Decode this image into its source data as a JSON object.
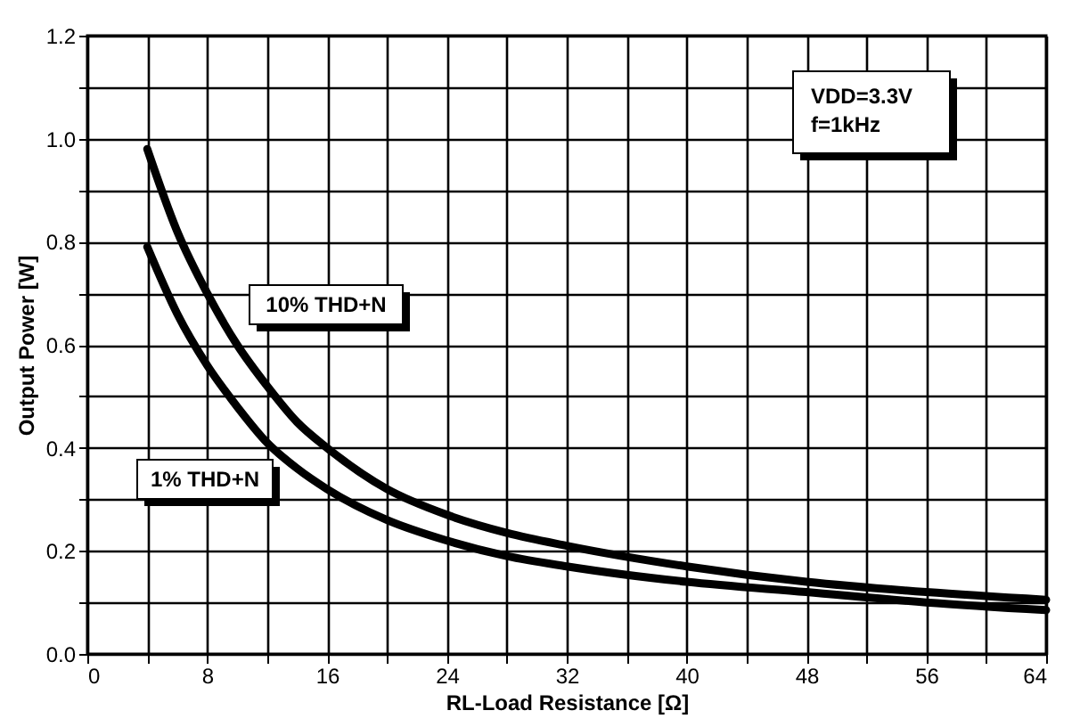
{
  "chart_data": {
    "type": "line",
    "xlabel": "RL-Load Resistance [Ω]",
    "ylabel": "Output Power [W]",
    "x": [
      4,
      6,
      8,
      10,
      12,
      14,
      16,
      20,
      24,
      28,
      32,
      40,
      48,
      56,
      64
    ],
    "series": [
      {
        "name": "10% THD+N",
        "color": "#000000",
        "values": [
          0.98,
          0.82,
          0.7,
          0.6,
          0.52,
          0.45,
          0.4,
          0.32,
          0.27,
          0.235,
          0.21,
          0.17,
          0.14,
          0.12,
          0.105
        ]
      },
      {
        "name": "1% THD+N",
        "color": "#000000",
        "values": [
          0.79,
          0.66,
          0.56,
          0.48,
          0.41,
          0.36,
          0.32,
          0.26,
          0.22,
          0.19,
          0.17,
          0.14,
          0.12,
          0.1,
          0.085
        ]
      }
    ],
    "annotations": [
      "VDD=3.3V",
      "f=1kHz"
    ],
    "xlim": [
      0,
      64
    ],
    "ylim": [
      0,
      1.2
    ],
    "xticks": [
      0,
      {
        "value": 4,
        "label": null
      },
      8,
      {
        "value": 12,
        "label": null
      },
      16,
      {
        "value": 20,
        "label": null
      },
      24,
      {
        "value": 28,
        "label": null
      },
      32,
      {
        "value": 36,
        "label": null
      },
      40,
      {
        "value": 44,
        "label": null
      },
      48,
      {
        "value": 52,
        "label": null
      },
      56,
      {
        "value": 60,
        "label": null
      },
      64
    ],
    "yticks": [
      {
        "value": 0,
        "label": "0.0"
      },
      {
        "value": 0.1,
        "label": null
      },
      {
        "value": 0.2,
        "label": "0.2"
      },
      {
        "value": 0.3,
        "label": null
      },
      {
        "value": 0.4,
        "label": "0.4"
      },
      {
        "value": 0.5,
        "label": null
      },
      {
        "value": 0.6,
        "label": "0.6"
      },
      {
        "value": 0.7,
        "label": null
      },
      {
        "value": 0.8,
        "label": "0.8"
      },
      {
        "value": 0.9,
        "label": null
      },
      {
        "value": 1.0,
        "label": "1.0"
      },
      {
        "value": 1.1,
        "label": null
      },
      {
        "value": 1.2,
        "label": "1.2"
      }
    ],
    "grid": true,
    "legend": false,
    "marker": "none",
    "line_style": "solid"
  }
}
